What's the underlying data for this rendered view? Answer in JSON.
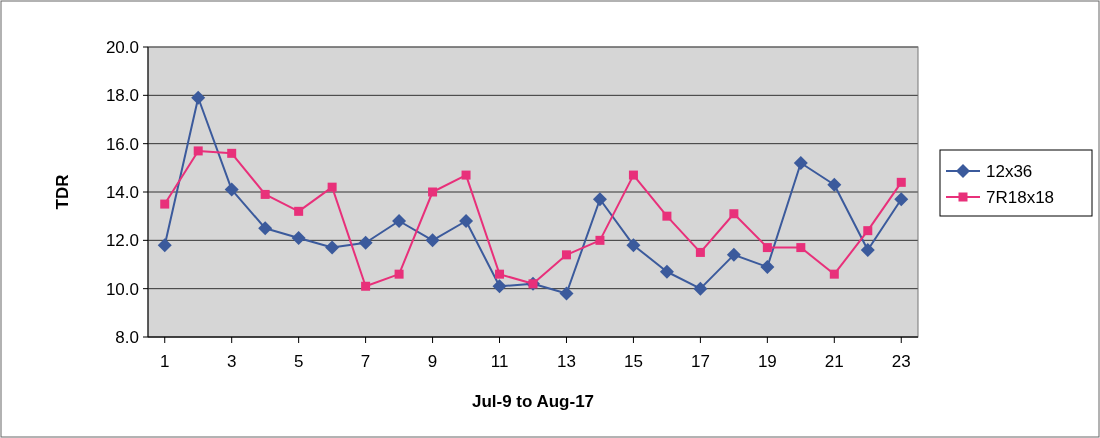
{
  "chart_data": {
    "type": "line",
    "xlabel": "Jul-9 to Aug-17",
    "ylabel": "TDR",
    "x": [
      1,
      2,
      3,
      4,
      5,
      6,
      7,
      8,
      9,
      10,
      11,
      12,
      13,
      14,
      15,
      16,
      17,
      18,
      19,
      20,
      21,
      22,
      23
    ],
    "xlim": [
      0.5,
      23.5
    ],
    "xticks": [
      1,
      3,
      5,
      7,
      9,
      11,
      13,
      15,
      17,
      19,
      21,
      23
    ],
    "series": [
      {
        "name": "12x36",
        "color": "#3b5a9c",
        "marker": "diamond",
        "values": [
          11.8,
          17.9,
          14.1,
          12.5,
          12.1,
          11.7,
          11.9,
          12.8,
          12.0,
          12.8,
          10.1,
          10.2,
          9.8,
          13.7,
          11.8,
          10.7,
          10.0,
          11.4,
          10.9,
          15.2,
          14.3,
          11.6,
          13.7
        ]
      },
      {
        "name": "7R18x18",
        "color": "#e8307a",
        "marker": "square",
        "values": [
          13.5,
          15.7,
          15.6,
          13.9,
          13.2,
          14.2,
          10.1,
          10.6,
          14.0,
          14.7,
          10.6,
          10.2,
          11.4,
          12.0,
          14.7,
          13.0,
          11.5,
          13.1,
          11.7,
          11.7,
          10.6,
          12.4,
          14.4
        ]
      }
    ],
    "ylim": [
      8,
      20
    ],
    "yticks": [
      {
        "value": 8,
        "label": "8.0"
      },
      {
        "value": 10,
        "label": "10.0"
      },
      {
        "value": 12,
        "label": "12.0"
      },
      {
        "value": 14,
        "label": "14.0"
      },
      {
        "value": 16,
        "label": "16.0"
      },
      {
        "value": 18,
        "label": "18.0"
      },
      {
        "value": 20,
        "label": "20.0"
      }
    ],
    "grid": "y",
    "legend": "right"
  }
}
